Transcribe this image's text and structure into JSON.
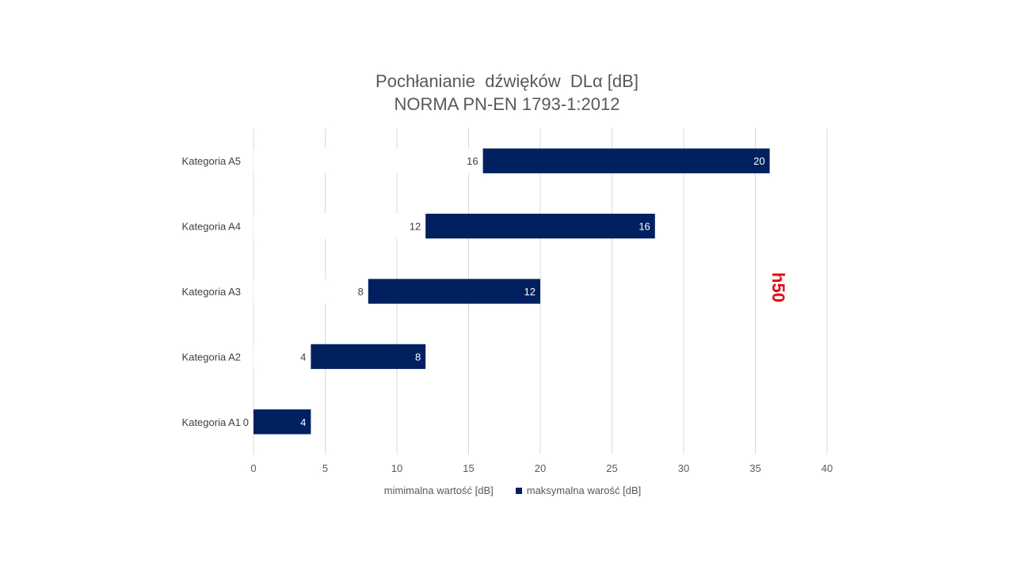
{
  "chart_data": {
    "type": "bar",
    "orientation": "horizontal",
    "stacked": true,
    "title_lines": [
      "Pochłanianie  dźwięków  DLα [dB]",
      "NORMA PN-EN 1793-1:2012"
    ],
    "categories": [
      "Kategoria A1",
      "Kategoria A2",
      "Kategoria A3",
      "Kategoria A4",
      "Kategoria A5"
    ],
    "series": [
      {
        "name": "mimimalna wartość [dB]",
        "values": [
          0,
          4,
          8,
          12,
          16
        ],
        "color": "#ffffff",
        "label_color": "#404040"
      },
      {
        "name": "maksymalna warość [dB]",
        "values": [
          4,
          8,
          12,
          16,
          20
        ],
        "color": "#002060",
        "label_color": "#ffffff"
      }
    ],
    "xlim": [
      0,
      40
    ],
    "xticks": [
      0,
      5,
      10,
      15,
      20,
      25,
      30,
      35,
      40
    ],
    "grid": "vertical",
    "legend_position": "bottom"
  },
  "watermark": "h50"
}
